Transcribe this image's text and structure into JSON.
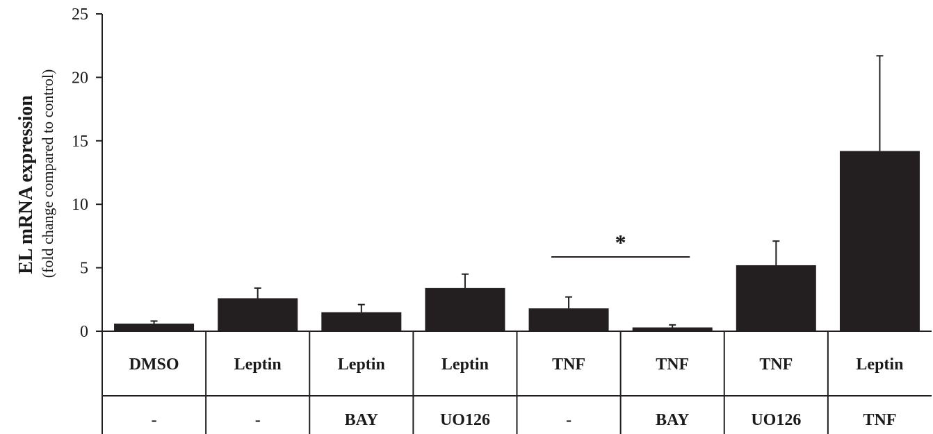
{
  "chart_data": {
    "type": "bar",
    "ylabel": "EL mRNA expression",
    "ylabel_sub": "(fold change compared to control)",
    "ylim": [
      0,
      25
    ],
    "yticks": [
      "0",
      "5",
      "10",
      "15",
      "20",
      "25"
    ],
    "category_rows": [
      [
        "DMSO",
        "Leptin",
        "Leptin",
        "Leptin",
        "TNF",
        "TNF",
        "TNF",
        "Leptin"
      ],
      [
        "-",
        "-",
        "BAY",
        "UO126",
        "-",
        "BAY",
        "UO126",
        "TNF"
      ]
    ],
    "values": [
      0.6,
      2.6,
      1.5,
      3.4,
      1.8,
      0.3,
      5.2,
      14.2
    ],
    "errors": [
      0.2,
      0.8,
      0.6,
      1.1,
      0.9,
      0.2,
      1.9,
      7.5
    ],
    "bar_color": "#231f20",
    "significance": {
      "label": "*",
      "from_index": 4,
      "to_index": 5
    }
  }
}
